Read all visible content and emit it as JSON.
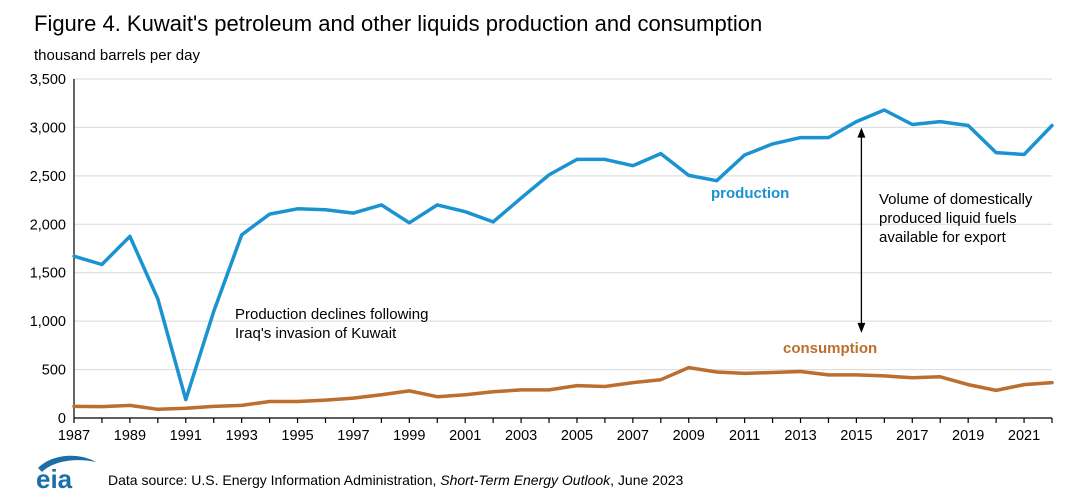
{
  "title": "Figure 4. Kuwait's petroleum and other liquids production and consumption",
  "source": {
    "prefix": "Data source: U.S. Energy Information Administration, ",
    "publication": "Short-Term Energy Outlook",
    "suffix": ", June 2023"
  },
  "logo_text": "eia",
  "annotations": {
    "decline": "Production declines following Iraq's invasion of Kuwait",
    "export": "Volume of domestically produced liquid fuels available for export"
  },
  "colors": {
    "production": "#1b93d1",
    "consumption": "#bb6e2e",
    "logo": "#1b6fa6"
  },
  "chart_data": {
    "type": "line",
    "title": "Figure 4. Kuwait's petroleum and other liquids production and consumption",
    "ylabel": "thousand barrels per day",
    "xlabel": "",
    "x": [
      1987,
      1988,
      1989,
      1990,
      1991,
      1992,
      1993,
      1994,
      1995,
      1996,
      1997,
      1998,
      1999,
      2000,
      2001,
      2002,
      2003,
      2004,
      2005,
      2006,
      2007,
      2008,
      2009,
      2010,
      2011,
      2012,
      2013,
      2014,
      2015,
      2016,
      2017,
      2018,
      2019,
      2020,
      2021,
      2022
    ],
    "xticks": [
      "1987",
      "1989",
      "1991",
      "1993",
      "1995",
      "1997",
      "1999",
      "2001",
      "2003",
      "2005",
      "2007",
      "2009",
      "2011",
      "2013",
      "2015",
      "2017",
      "2019",
      "2021"
    ],
    "ylim": [
      0,
      3500
    ],
    "yticks": [
      "0",
      "500",
      "1,000",
      "1,500",
      "2,000",
      "2,500",
      "3,000",
      "3,500"
    ],
    "grid": true,
    "legend": "inline labels",
    "series": [
      {
        "name": "production",
        "values": [
          1670,
          1585,
          1875,
          1230,
          190,
          1100,
          1890,
          2105,
          2160,
          2150,
          2115,
          2200,
          2015,
          2200,
          2130,
          2025,
          2270,
          2510,
          2670,
          2670,
          2605,
          2730,
          2505,
          2450,
          2715,
          2830,
          2895,
          2895,
          3060,
          3180,
          3030,
          3060,
          3020,
          2740,
          2720,
          3020
        ]
      },
      {
        "name": "consumption",
        "values": [
          120,
          118,
          130,
          90,
          100,
          120,
          130,
          170,
          170,
          185,
          205,
          240,
          280,
          220,
          240,
          270,
          290,
          290,
          335,
          325,
          365,
          395,
          520,
          475,
          460,
          470,
          480,
          445,
          445,
          435,
          415,
          425,
          345,
          285,
          345,
          365
        ]
      }
    ]
  }
}
